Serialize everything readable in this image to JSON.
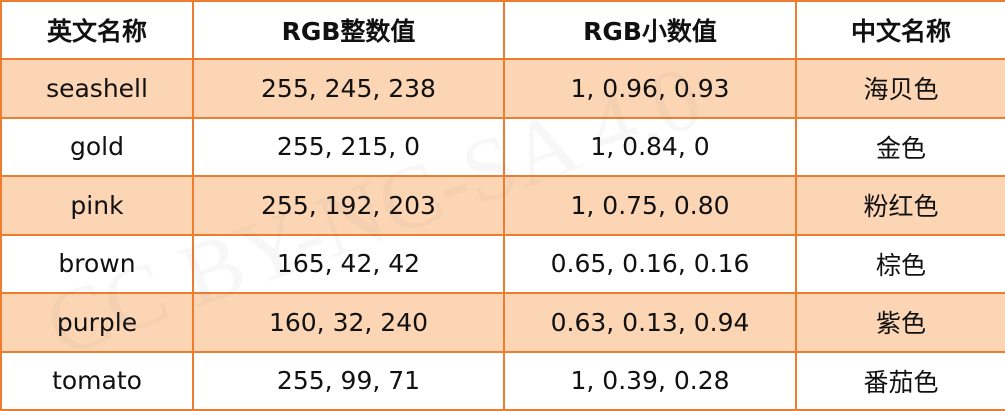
{
  "table": {
    "header": [
      "英文名称",
      "RGB整数值",
      "RGB小数值",
      "中文名称"
    ],
    "rows": [
      [
        "seashell",
        "255, 245, 238",
        "1, 0.96, 0.93",
        "海贝色"
      ],
      [
        "gold",
        "255, 215, 0",
        "1, 0.84, 0",
        "金色"
      ],
      [
        "pink",
        "255, 192, 203",
        "1, 0.75, 0.80",
        "粉红色"
      ],
      [
        "brown",
        "165, 42, 42",
        "0.65, 0.16, 0.16",
        "棕色"
      ],
      [
        "purple",
        "160, 32, 240",
        "0.63, 0.13, 0.94",
        "紫色"
      ],
      [
        "tomato",
        "255, 99, 71",
        "1, 0.39, 0.28",
        "番茄色"
      ]
    ]
  },
  "watermark": "CC BY-NC-SA 4.0"
}
